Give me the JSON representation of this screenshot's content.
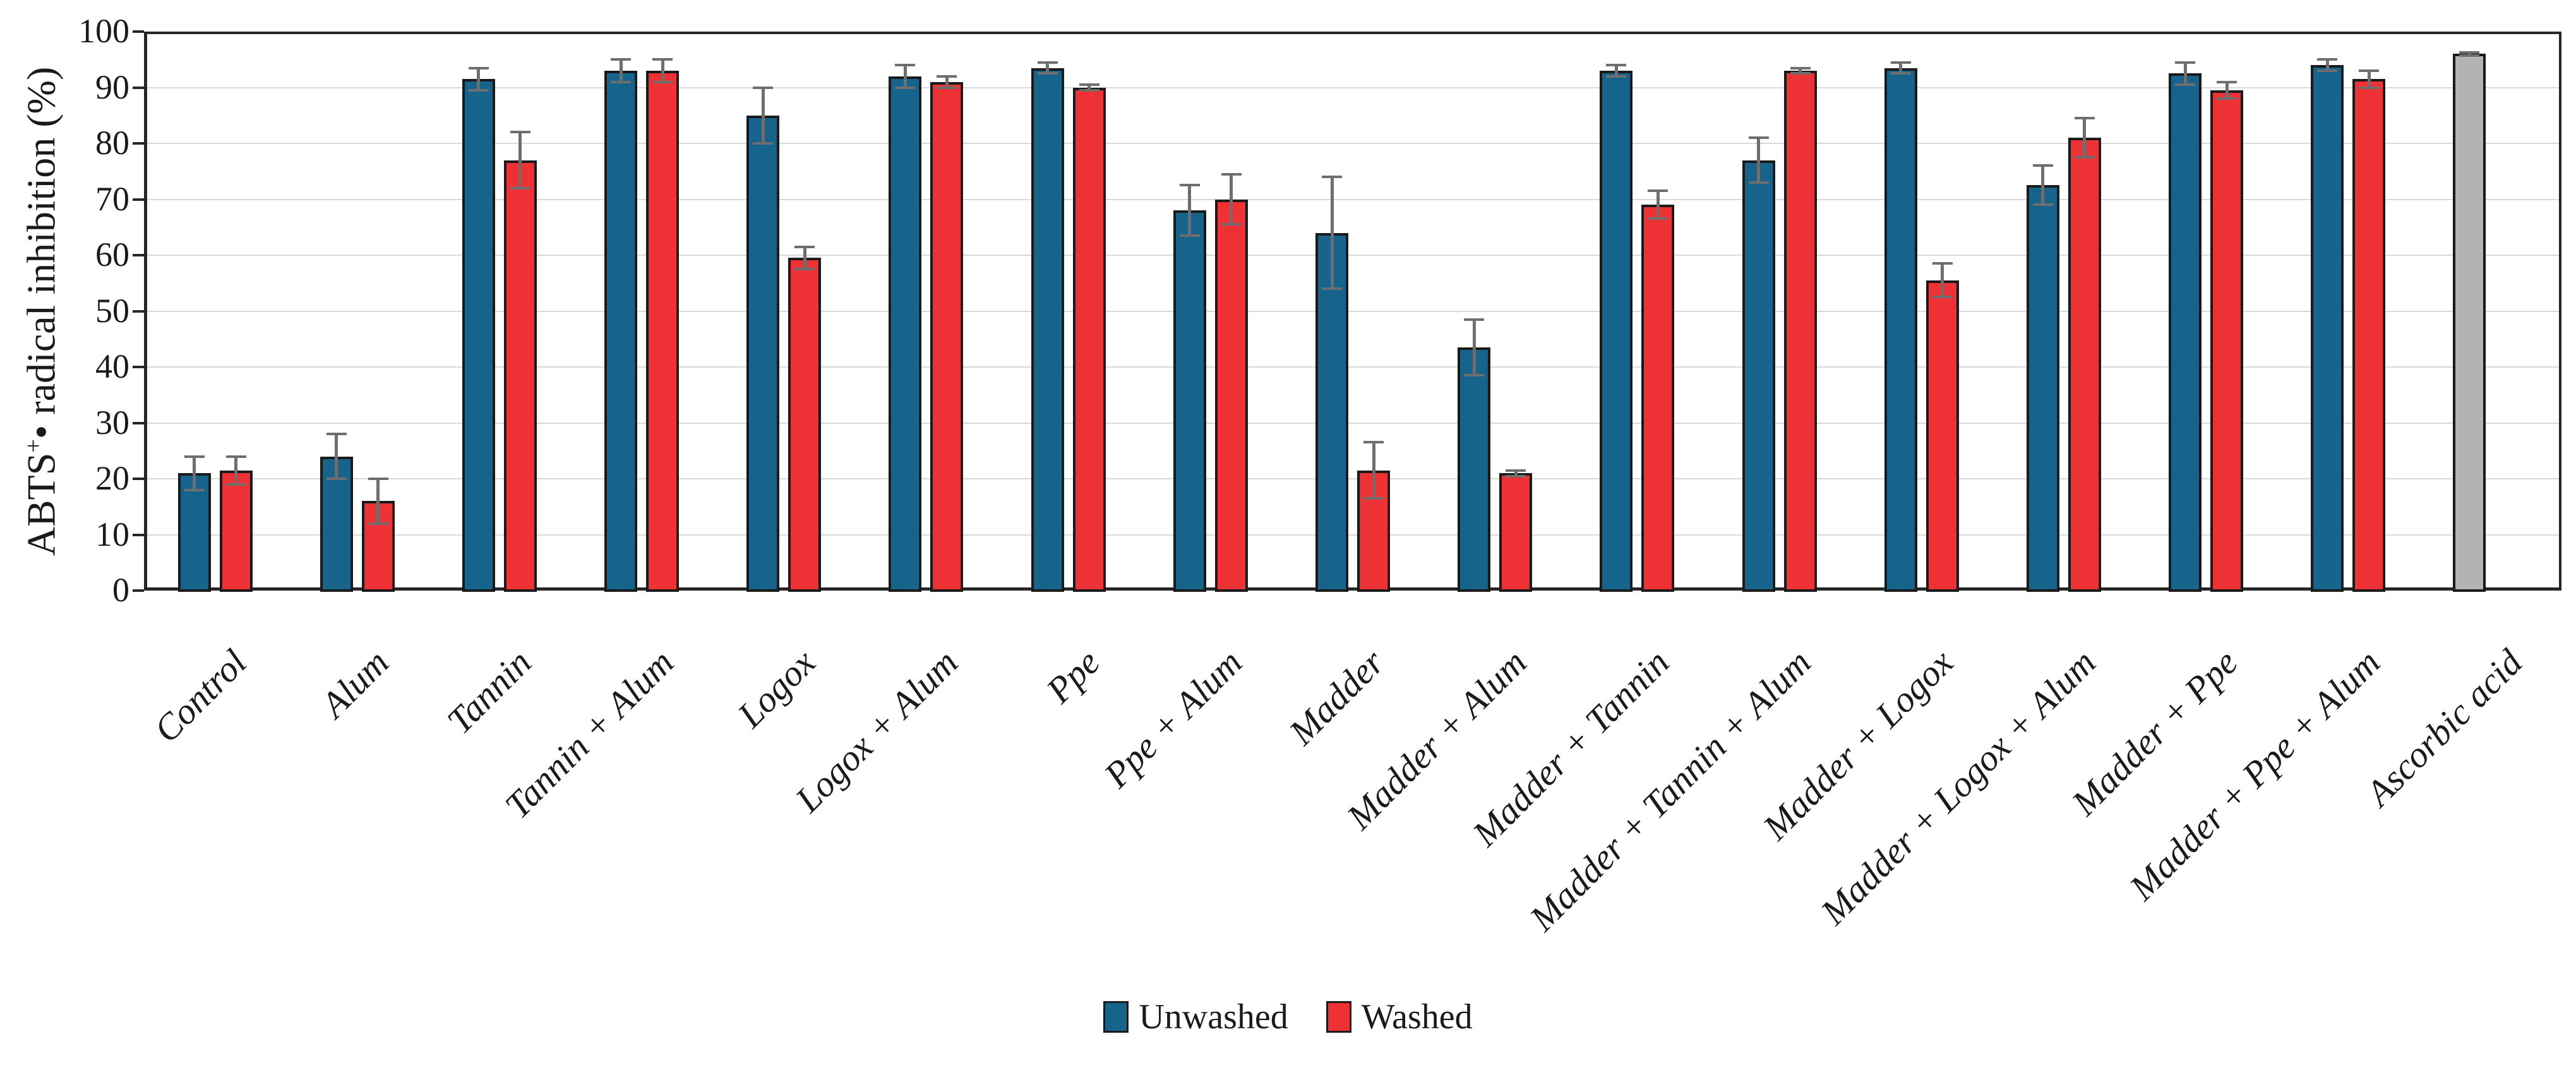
{
  "chart_data": {
    "type": "bar",
    "title": "",
    "ylabel": {
      "prefix": "ABTS",
      "sup": "+",
      "bullet": "•",
      "rest": " radical inhibition (%)"
    },
    "ylim": [
      0,
      100
    ],
    "yticks": [
      0,
      10,
      20,
      30,
      40,
      50,
      60,
      70,
      80,
      90,
      100
    ],
    "grid": "horizontal",
    "legend_position": "bottom-center",
    "categories": [
      "Control",
      "Alum",
      "Tannin",
      "Tannin + Alum",
      "Logox",
      "Logox + Alum",
      "Ppe",
      "Ppe + Alum",
      "Madder",
      "Madder + Alum",
      "Madder + Tannin",
      "Madder + Tannin + Alum",
      "Madder + Logox",
      "Madder + Logox + Alum",
      "Madder + Ppe",
      "Madder + Ppe + Alum",
      "Ascorbic acid"
    ],
    "series": [
      {
        "name": "Unwashed",
        "color": "#16648B",
        "values": [
          21,
          24,
          91.5,
          93,
          85,
          92,
          93.5,
          68,
          64,
          43.5,
          93,
          77,
          93.5,
          72.5,
          92.5,
          94,
          null
        ],
        "errors": [
          3,
          4,
          2,
          2,
          5,
          2,
          1,
          4.5,
          10,
          5,
          1,
          4,
          1,
          3.5,
          2,
          1,
          null
        ]
      },
      {
        "name": "Washed",
        "color": "#EE3134",
        "values": [
          21.5,
          16,
          77,
          93,
          59.5,
          91,
          90,
          70,
          21.5,
          21,
          69,
          93,
          55.5,
          81,
          89.5,
          91.5,
          null
        ],
        "errors": [
          2.5,
          4,
          5,
          2,
          2,
          1,
          0.5,
          4.5,
          5,
          0.5,
          2.5,
          0.5,
          3,
          3.5,
          1.5,
          1.5,
          null
        ]
      },
      {
        "name": "Ascorbic acid",
        "color": "#B3B3B3",
        "in_legend": false,
        "values": [
          null,
          null,
          null,
          null,
          null,
          null,
          null,
          null,
          null,
          null,
          null,
          null,
          null,
          null,
          null,
          null,
          96
        ],
        "errors": [
          null,
          null,
          null,
          null,
          null,
          null,
          null,
          null,
          null,
          null,
          null,
          null,
          null,
          null,
          null,
          null,
          0.3
        ]
      }
    ],
    "legend": {
      "items": [
        {
          "label": "Unwashed",
          "color": "#16648B"
        },
        {
          "label": "Washed",
          "color": "#EE3134"
        }
      ]
    },
    "colors": {
      "axis": "#262626",
      "gridline": "#D9D9D9",
      "error_bar": "#6E6E6E",
      "bar_outline": "#1A1A1A",
      "background": "#FFFFFF"
    }
  }
}
